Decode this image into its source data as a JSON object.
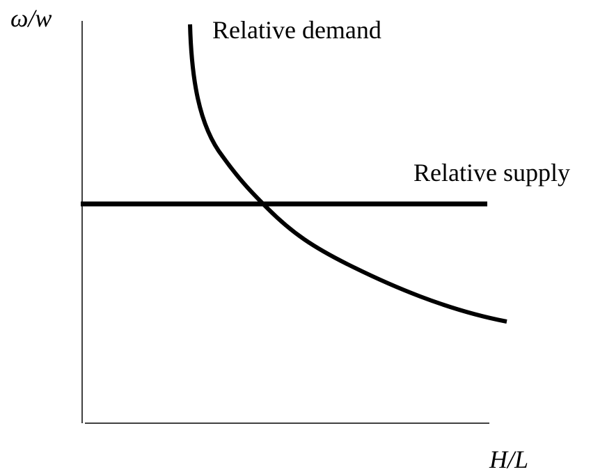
{
  "y_axis_label": "ω/w",
  "x_axis_label": "H/L",
  "curves": [
    {
      "label": "Relative demand"
    },
    {
      "label": "Relative supply"
    }
  ]
}
